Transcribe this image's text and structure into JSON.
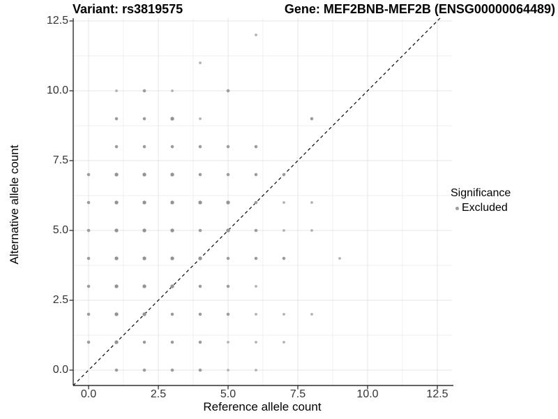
{
  "header": {
    "left_title": "Variant: rs3819575",
    "right_title": "Gene: MEF2BNB-MEF2B (ENSG00000064489)"
  },
  "axes": {
    "x_label": "Reference allele count",
    "y_label": "Alternative allele count",
    "x_tick_labels": [
      "0.0",
      "2.5",
      "5.0",
      "7.5",
      "10.0",
      "12.5"
    ],
    "y_tick_labels": [
      "0.0",
      "2.5",
      "5.0",
      "7.5",
      "10.0",
      "12.5"
    ]
  },
  "legend": {
    "title": "Significance",
    "items": [
      {
        "label": "Excluded",
        "color": "#9d9d9d",
        "marker": "circle-icon"
      }
    ]
  },
  "colors": {
    "background": "#ffffff",
    "axis_line": "#2e2e2e",
    "tick_text": "#333333",
    "grid_major": "#e4e4e4",
    "grid_minor": "#efefef",
    "reference_line": "#000000",
    "point_gray": "#9d9d9d"
  },
  "chart_data": {
    "type": "scatter",
    "title_left": "Variant: rs3819575",
    "title_right": "Gene: MEF2BNB-MEF2B (ENSG00000064489)",
    "xlabel": "Reference allele count",
    "ylabel": "Alternative allele count",
    "xlim": [
      -0.55,
      13.05
    ],
    "ylim": [
      -0.55,
      13.15
    ],
    "x_major_ticks": [
      0,
      2.5,
      5,
      7.5,
      10,
      12.5
    ],
    "y_major_ticks": [
      0,
      2.5,
      5,
      7.5,
      10,
      12.5
    ],
    "x_minor_ticks": [
      1.25,
      3.75,
      6.25,
      8.75,
      11.25
    ],
    "y_minor_ticks": [
      1.25,
      3.75,
      6.25,
      8.75,
      11.25
    ],
    "grid": "major+minor",
    "legend_position": "right",
    "reference_line": {
      "type": "identity y=x",
      "style": "dashed",
      "color": "#000000"
    },
    "point_size_classes": {
      "1": {
        "r": 1.9,
        "color": "#b1b1b1"
      },
      "2": {
        "r": 2.3,
        "color": "#9d9d9d"
      },
      "3": {
        "r": 2.7,
        "color": "#949494"
      }
    },
    "series": [
      {
        "name": "Excluded",
        "color": "#9d9d9d",
        "points": [
          [
            6,
            12,
            1
          ],
          [
            4,
            11,
            1
          ],
          [
            1,
            10,
            1
          ],
          [
            2,
            10,
            2
          ],
          [
            3,
            10,
            1
          ],
          [
            5,
            10,
            2
          ],
          [
            1,
            9,
            2
          ],
          [
            2,
            9,
            2
          ],
          [
            3,
            9,
            3
          ],
          [
            4,
            9,
            1
          ],
          [
            8,
            9,
            2
          ],
          [
            1,
            8,
            2
          ],
          [
            2,
            8,
            2
          ],
          [
            3,
            8,
            2
          ],
          [
            4,
            8,
            2
          ],
          [
            5,
            8,
            2
          ],
          [
            6,
            8,
            2
          ],
          [
            0,
            7,
            2
          ],
          [
            1,
            7,
            3
          ],
          [
            2,
            7,
            3
          ],
          [
            3,
            7,
            3
          ],
          [
            4,
            7,
            2
          ],
          [
            5,
            7,
            2
          ],
          [
            6,
            7,
            2
          ],
          [
            7,
            7,
            2
          ],
          [
            0,
            6,
            2
          ],
          [
            1,
            6,
            3
          ],
          [
            2,
            6,
            3
          ],
          [
            3,
            6,
            3
          ],
          [
            4,
            6,
            3
          ],
          [
            5,
            6,
            3
          ],
          [
            6,
            6,
            2
          ],
          [
            7,
            6,
            1
          ],
          [
            8,
            6,
            1
          ],
          [
            0,
            5,
            2
          ],
          [
            1,
            5,
            3
          ],
          [
            2,
            5,
            3
          ],
          [
            3,
            5,
            3
          ],
          [
            4,
            5,
            2
          ],
          [
            5,
            5,
            3
          ],
          [
            6,
            5,
            2
          ],
          [
            7,
            5,
            1
          ],
          [
            8,
            5,
            1
          ],
          [
            0,
            4,
            2
          ],
          [
            1,
            4,
            3
          ],
          [
            2,
            4,
            3
          ],
          [
            3,
            4,
            3
          ],
          [
            4,
            4,
            3
          ],
          [
            5,
            4,
            2
          ],
          [
            6,
            4,
            2
          ],
          [
            7,
            4,
            2
          ],
          [
            9,
            4,
            1
          ],
          [
            0,
            3,
            2
          ],
          [
            1,
            3,
            3
          ],
          [
            2,
            3,
            3
          ],
          [
            3,
            3,
            3
          ],
          [
            4,
            3,
            2
          ],
          [
            5,
            3,
            2
          ],
          [
            6,
            3,
            1
          ],
          [
            0,
            2,
            2
          ],
          [
            1,
            2,
            3
          ],
          [
            2,
            2,
            3
          ],
          [
            3,
            2,
            2
          ],
          [
            4,
            2,
            2
          ],
          [
            5,
            2,
            2
          ],
          [
            6,
            2,
            1
          ],
          [
            7,
            2,
            1
          ],
          [
            8,
            2,
            1
          ],
          [
            0,
            1,
            2
          ],
          [
            1,
            1,
            3
          ],
          [
            2,
            1,
            2
          ],
          [
            3,
            1,
            2
          ],
          [
            4,
            1,
            2
          ],
          [
            5,
            1,
            1
          ],
          [
            6,
            1,
            1
          ],
          [
            7,
            1,
            1
          ],
          [
            1,
            0,
            2
          ],
          [
            2,
            0,
            2
          ],
          [
            3,
            0,
            2
          ],
          [
            4,
            0,
            2
          ],
          [
            5,
            0,
            1
          ],
          [
            6,
            0,
            1
          ]
        ]
      }
    ]
  }
}
